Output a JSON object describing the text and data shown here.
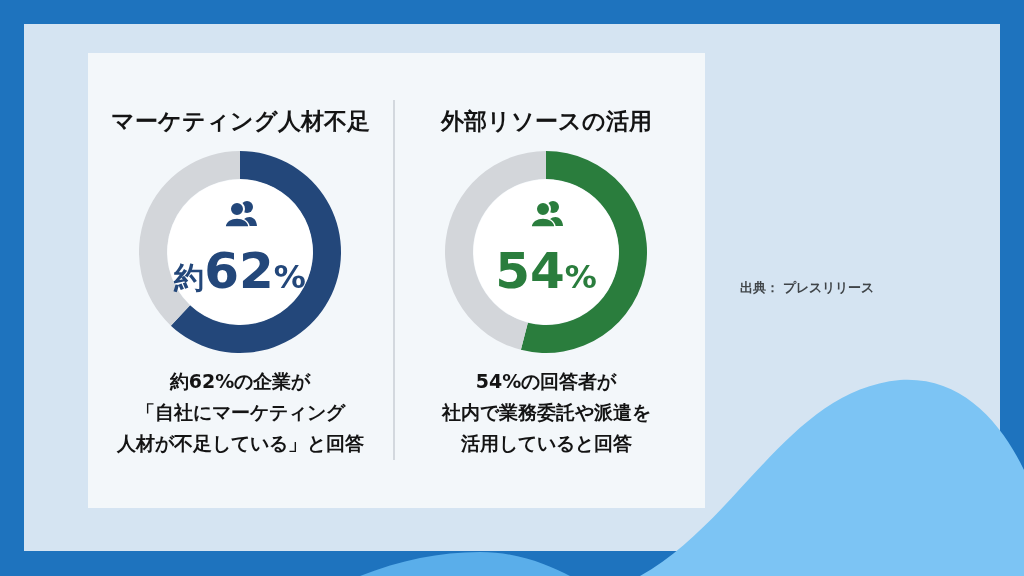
{
  "chart_data": [
    {
      "type": "donut",
      "title": "マーケティング人材不足",
      "categories": [
        null,
        null
      ],
      "values": [
        62,
        38
      ],
      "colors": [
        "#23477a",
        "#d3d6da"
      ],
      "value_labels": [
        "約62%",
        null
      ],
      "annotations": [
        "約62%の企業が「自社にマーケティング人材が不足している」と回答"
      ]
    },
    {
      "type": "donut",
      "title": "外部リソースの活用",
      "categories": [
        null,
        null
      ],
      "values": [
        54,
        46
      ],
      "colors": [
        "#2a7d3d",
        "#d3d6da"
      ],
      "value_labels": [
        "54%",
        null
      ],
      "annotations": [
        "54%の回答者が社内で業務委託や派遣を活用していると回答"
      ]
    },
    {
      "type": "other",
      "annotations": [
        "出典： プレスリリース"
      ]
    }
  ]
}
